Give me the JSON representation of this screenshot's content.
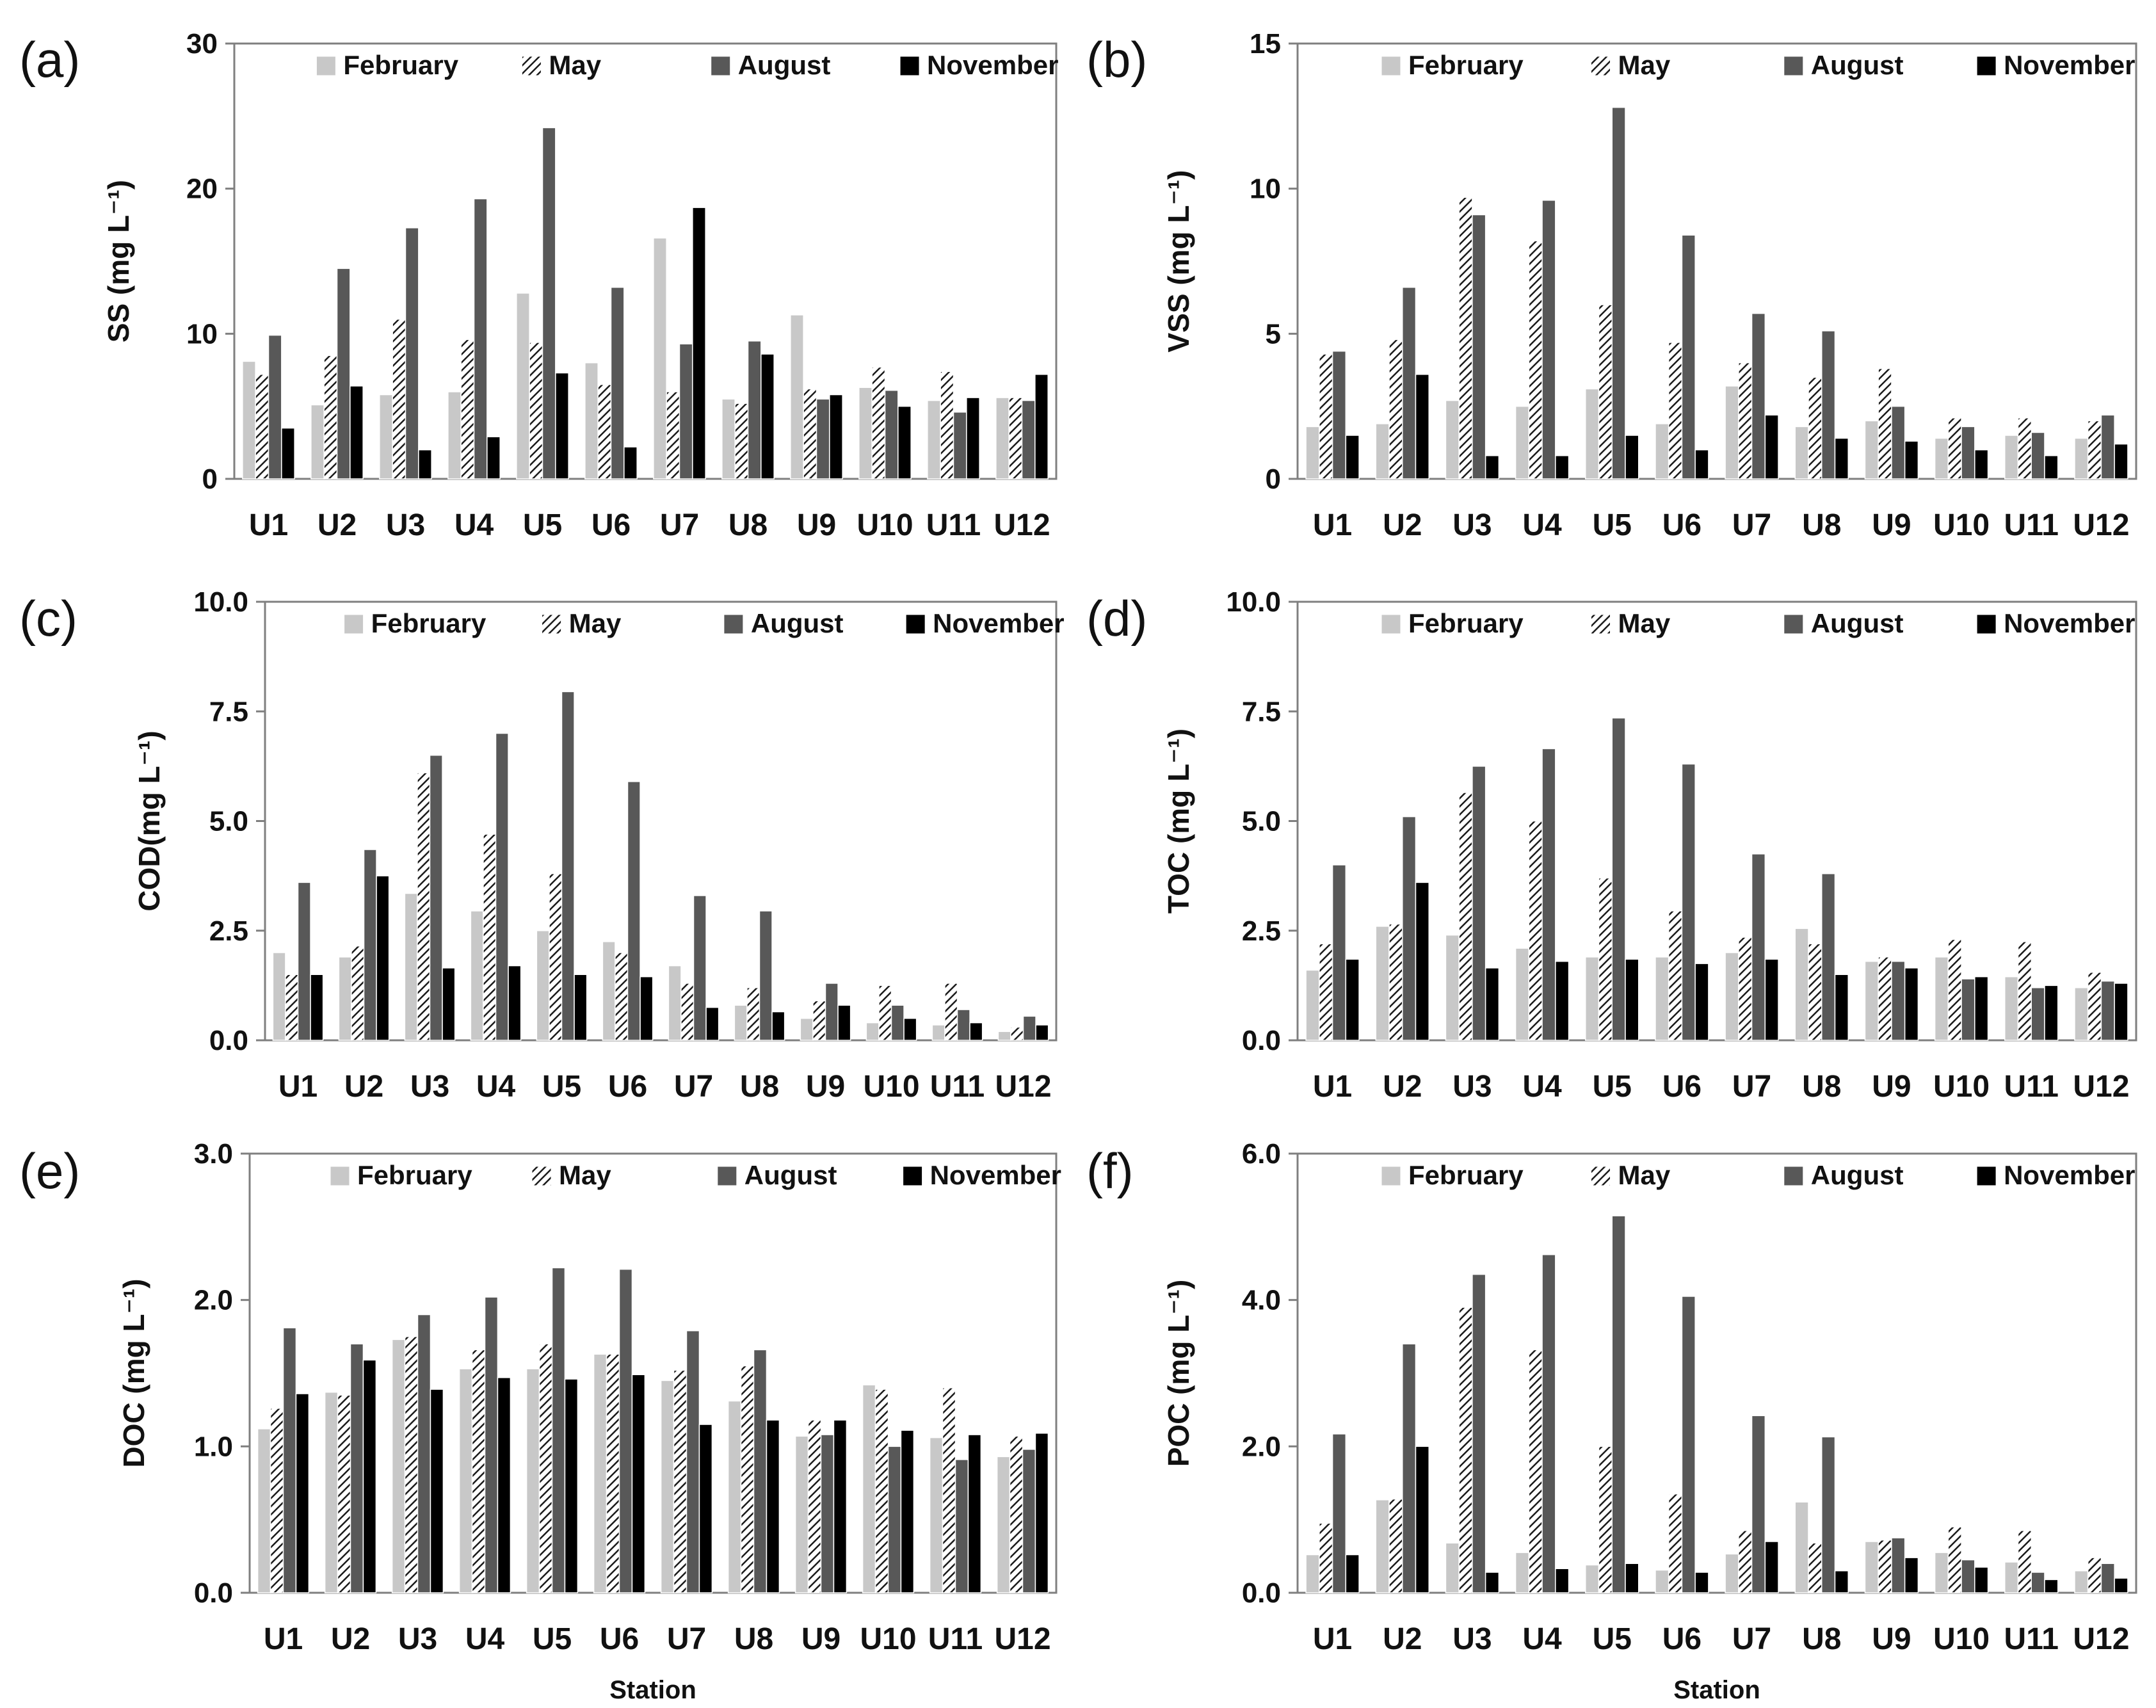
{
  "figure": {
    "series_names": [
      "February",
      "May",
      "August",
      "November"
    ],
    "stations": [
      "U1",
      "U2",
      "U3",
      "U4",
      "U5",
      "U6",
      "U7",
      "U8",
      "U9",
      "U10",
      "U11",
      "U12"
    ],
    "series_colors": {
      "February": "#c8c8c8",
      "May": "#ffffff",
      "August": "#585858",
      "November": "#000000"
    }
  },
  "chart_data": [
    {
      "type": "bar",
      "panel_label": "(a)",
      "title": "",
      "xlabel": "",
      "ylabel": "SS (mg L⁻¹)",
      "ylim": [
        0,
        30
      ],
      "yticks": [
        "0",
        "10",
        "20",
        "30"
      ],
      "categories": [
        "U1",
        "U2",
        "U3",
        "U4",
        "U5",
        "U6",
        "U7",
        "U8",
        "U9",
        "U10",
        "U11",
        "U12"
      ],
      "series": [
        {
          "name": "February",
          "values": [
            8.1,
            5.1,
            5.8,
            6.0,
            12.8,
            8.0,
            16.6,
            5.5,
            11.3,
            6.3,
            5.4,
            5.6
          ]
        },
        {
          "name": "May",
          "values": [
            7.2,
            8.5,
            11.0,
            9.6,
            9.4,
            6.5,
            6.0,
            5.2,
            6.2,
            7.7,
            7.4,
            5.6
          ]
        },
        {
          "name": "August",
          "values": [
            9.9,
            14.5,
            17.3,
            19.3,
            24.2,
            13.2,
            9.3,
            9.5,
            5.5,
            6.1,
            4.6,
            5.4
          ]
        },
        {
          "name": "November",
          "values": [
            3.5,
            6.4,
            2.0,
            2.9,
            7.3,
            2.2,
            18.7,
            8.6,
            5.8,
            5.0,
            5.6,
            7.2
          ]
        }
      ]
    },
    {
      "type": "bar",
      "panel_label": "(b)",
      "title": "",
      "xlabel": "",
      "ylabel": "VSS (mg L⁻¹)",
      "ylim": [
        0,
        15
      ],
      "yticks": [
        "0",
        "5",
        "10",
        "15"
      ],
      "categories": [
        "U1",
        "U2",
        "U3",
        "U4",
        "U5",
        "U6",
        "U7",
        "U8",
        "U9",
        "U10",
        "U11",
        "U12"
      ],
      "series": [
        {
          "name": "February",
          "values": [
            1.8,
            1.9,
            2.7,
            2.5,
            3.1,
            1.9,
            3.2,
            1.8,
            2.0,
            1.4,
            1.5,
            1.4
          ]
        },
        {
          "name": "May",
          "values": [
            4.3,
            4.8,
            9.7,
            8.2,
            6.0,
            4.7,
            4.0,
            3.5,
            3.8,
            2.1,
            2.1,
            2.0
          ]
        },
        {
          "name": "August",
          "values": [
            4.4,
            6.6,
            9.1,
            9.6,
            12.8,
            8.4,
            5.7,
            5.1,
            2.5,
            1.8,
            1.6,
            2.2
          ]
        },
        {
          "name": "November",
          "values": [
            1.5,
            3.6,
            0.8,
            0.8,
            1.5,
            1.0,
            2.2,
            1.4,
            1.3,
            1.0,
            0.8,
            1.2
          ]
        }
      ]
    },
    {
      "type": "bar",
      "panel_label": "(c)",
      "title": "",
      "xlabel": "",
      "ylabel": "COD(mg L⁻¹)",
      "ylim": [
        0,
        10
      ],
      "yticks": [
        "0.0",
        "2.5",
        "5.0",
        "7.5",
        "10.0"
      ],
      "categories": [
        "U1",
        "U2",
        "U3",
        "U4",
        "U5",
        "U6",
        "U7",
        "U8",
        "U9",
        "U10",
        "U11",
        "U12"
      ],
      "series": [
        {
          "name": "February",
          "values": [
            2.0,
            1.9,
            3.35,
            2.95,
            2.5,
            2.25,
            1.7,
            0.8,
            0.5,
            0.4,
            0.35,
            0.2
          ]
        },
        {
          "name": "May",
          "values": [
            1.5,
            2.15,
            6.1,
            4.7,
            3.8,
            2.0,
            1.3,
            1.2,
            0.9,
            1.25,
            1.3,
            0.3
          ]
        },
        {
          "name": "August",
          "values": [
            3.6,
            4.35,
            6.5,
            7.0,
            7.95,
            5.9,
            3.3,
            2.95,
            1.3,
            0.8,
            0.7,
            0.55
          ]
        },
        {
          "name": "November",
          "values": [
            1.5,
            3.75,
            1.65,
            1.7,
            1.5,
            1.45,
            0.75,
            0.65,
            0.8,
            0.5,
            0.4,
            0.35
          ]
        }
      ]
    },
    {
      "type": "bar",
      "panel_label": "(d)",
      "title": "",
      "xlabel": "",
      "ylabel": "TOC (mg L⁻¹)",
      "ylim": [
        0,
        10
      ],
      "yticks": [
        "0.0",
        "2.5",
        "5.0",
        "7.5",
        "10.0"
      ],
      "categories": [
        "U1",
        "U2",
        "U3",
        "U4",
        "U5",
        "U6",
        "U7",
        "U8",
        "U9",
        "U10",
        "U11",
        "U12"
      ],
      "series": [
        {
          "name": "February",
          "values": [
            1.6,
            2.6,
            2.4,
            2.1,
            1.9,
            1.9,
            2.0,
            2.55,
            1.8,
            1.9,
            1.45,
            1.2
          ]
        },
        {
          "name": "May",
          "values": [
            2.2,
            2.65,
            5.65,
            5.0,
            3.7,
            2.95,
            2.35,
            2.2,
            1.9,
            2.3,
            2.25,
            1.55
          ]
        },
        {
          "name": "August",
          "values": [
            4.0,
            5.1,
            6.25,
            6.65,
            7.35,
            6.3,
            4.25,
            3.8,
            1.8,
            1.4,
            1.2,
            1.35
          ]
        },
        {
          "name": "November",
          "values": [
            1.85,
            3.6,
            1.65,
            1.8,
            1.85,
            1.75,
            1.85,
            1.5,
            1.65,
            1.45,
            1.25,
            1.3
          ]
        }
      ]
    },
    {
      "type": "bar",
      "panel_label": "(e)",
      "title": "",
      "xlabel": "Station",
      "ylabel": "DOC (mg L⁻¹)",
      "ylim": [
        0,
        3
      ],
      "yticks": [
        "0.0",
        "1.0",
        "2.0",
        "3.0"
      ],
      "categories": [
        "U1",
        "U2",
        "U3",
        "U4",
        "U5",
        "U6",
        "U7",
        "U8",
        "U9",
        "U10",
        "U11",
        "U12"
      ],
      "series": [
        {
          "name": "February",
          "values": [
            1.12,
            1.37,
            1.73,
            1.53,
            1.53,
            1.63,
            1.45,
            1.31,
            1.07,
            1.42,
            1.06,
            0.93
          ]
        },
        {
          "name": "May",
          "values": [
            1.26,
            1.35,
            1.75,
            1.66,
            1.7,
            1.63,
            1.52,
            1.55,
            1.18,
            1.39,
            1.4,
            1.07
          ]
        },
        {
          "name": "August",
          "values": [
            1.81,
            1.7,
            1.9,
            2.02,
            2.22,
            2.21,
            1.79,
            1.66,
            1.08,
            1.0,
            0.91,
            0.98
          ]
        },
        {
          "name": "November",
          "values": [
            1.36,
            1.59,
            1.39,
            1.47,
            1.46,
            1.49,
            1.15,
            1.18,
            1.18,
            1.11,
            1.08,
            1.09
          ]
        }
      ]
    },
    {
      "type": "bar",
      "panel_label": "(f)",
      "title": "",
      "xlabel": "Station",
      "ylabel": "POC (mg L⁻¹)",
      "ylim": [
        0,
        6
      ],
      "yticks": [
        "0.0",
        "2.0",
        "4.0",
        "6.0"
      ],
      "categories": [
        "U1",
        "U2",
        "U3",
        "U4",
        "U5",
        "U6",
        "U7",
        "U8",
        "U9",
        "U10",
        "U11",
        "U12"
      ],
      "series": [
        {
          "name": "February",
          "values": [
            0.52,
            1.27,
            0.68,
            0.55,
            0.38,
            0.31,
            0.53,
            1.24,
            0.7,
            0.55,
            0.42,
            0.3
          ]
        },
        {
          "name": "May",
          "values": [
            0.95,
            1.28,
            3.9,
            3.32,
            2.0,
            1.35,
            0.85,
            0.68,
            0.72,
            0.9,
            0.85,
            0.48
          ]
        },
        {
          "name": "August",
          "values": [
            2.17,
            3.4,
            4.35,
            4.62,
            5.15,
            4.05,
            2.42,
            2.13,
            0.75,
            0.45,
            0.28,
            0.4
          ]
        },
        {
          "name": "November",
          "values": [
            0.52,
            2.0,
            0.28,
            0.33,
            0.4,
            0.28,
            0.7,
            0.3,
            0.48,
            0.35,
            0.18,
            0.2
          ]
        }
      ]
    }
  ]
}
